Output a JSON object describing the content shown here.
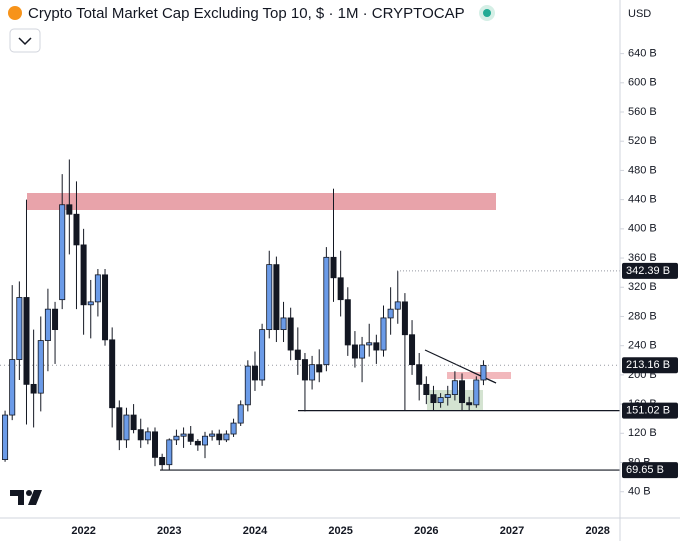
{
  "chart_data": {
    "type": "candlestick",
    "title": "Crypto Total Market Cap Excluding Top 10, $ · 1M · CRYPTOCAP",
    "currency": "USD",
    "categories": [
      null,
      null,
      null,
      null,
      null,
      null,
      null,
      null,
      null,
      null,
      null,
      "2022",
      null,
      null,
      null,
      null,
      null,
      null,
      null,
      null,
      null,
      null,
      null,
      "2023",
      null,
      null,
      null,
      null,
      null,
      null,
      null,
      null,
      null,
      null,
      null,
      "2024",
      null,
      null,
      null,
      null,
      null,
      null,
      null,
      null,
      null,
      null,
      null,
      "2025",
      null,
      null,
      null,
      null,
      null,
      null,
      null,
      null,
      null,
      null,
      null,
      "2026",
      null,
      null,
      null,
      null,
      null,
      null,
      null,
      null,
      null,
      null,
      null,
      "2027",
      null,
      null,
      null,
      null,
      null,
      null,
      null,
      null,
      null,
      null,
      null,
      "2028",
      null,
      null
    ],
    "open": [
      84,
      145,
      221,
      306,
      187,
      175,
      247,
      290,
      303,
      433,
      420,
      378,
      296,
      300,
      337,
      248,
      155,
      111,
      145,
      125,
      111,
      122,
      87,
      77,
      111,
      116,
      119,
      109,
      104,
      116,
      119,
      111,
      119,
      134,
      159,
      212,
      193,
      262,
      351,
      262,
      278,
      234,
      221,
      193,
      214,
      214,
      361,
      333,
      303,
      241,
      223,
      241,
      244,
      234,
      278,
      290,
      300,
      255,
      214,
      187,
      173,
      162,
      169,
      173,
      192,
      162,
      159,
      193,
      null,
      null,
      null,
      null,
      null,
      null,
      null,
      null,
      null,
      null,
      null,
      null,
      null,
      null,
      null,
      null,
      null,
      null
    ],
    "high": [
      151,
      323,
      328,
      440,
      262,
      280,
      318,
      300,
      475,
      495,
      465,
      400,
      330,
      345,
      345,
      265,
      165,
      155,
      160,
      140,
      128,
      128,
      92,
      113,
      125,
      128,
      130,
      112,
      122,
      124,
      125,
      124,
      140,
      165,
      220,
      232,
      270,
      370,
      362,
      300,
      292,
      265,
      230,
      226,
      235,
      375,
      455,
      370,
      320,
      260,
      252,
      270,
      255,
      295,
      320,
      342,
      312,
      275,
      230,
      198,
      185,
      175,
      185,
      205,
      202,
      170,
      198,
      220,
      null,
      null,
      null,
      null,
      null,
      null,
      null,
      null,
      null,
      null,
      null,
      null,
      null,
      null,
      null,
      null,
      null,
      null
    ],
    "low": [
      81,
      138,
      193,
      132,
      128,
      150,
      205,
      215,
      290,
      365,
      290,
      255,
      250,
      280,
      240,
      128,
      97,
      100,
      120,
      100,
      105,
      75,
      70,
      70,
      104,
      100,
      104,
      96,
      86,
      110,
      104,
      108,
      115,
      130,
      150,
      178,
      185,
      250,
      245,
      245,
      220,
      200,
      150,
      180,
      190,
      205,
      300,
      280,
      226,
      210,
      190,
      225,
      215,
      225,
      255,
      270,
      151,
      200,
      165,
      160,
      151,
      155,
      158,
      165,
      151,
      151,
      155,
      186,
      null,
      null,
      null,
      null,
      null,
      null,
      null,
      null,
      null,
      null,
      null,
      null,
      null,
      null,
      null,
      null,
      null,
      null
    ],
    "close": [
      145,
      221,
      306,
      187,
      175,
      247,
      290,
      262,
      433,
      420,
      378,
      296,
      300,
      337,
      248,
      155,
      111,
      145,
      125,
      111,
      122,
      87,
      77,
      111,
      116,
      119,
      109,
      104,
      116,
      119,
      111,
      119,
      134,
      159,
      212,
      193,
      262,
      351,
      262,
      278,
      234,
      221,
      193,
      214,
      204,
      361,
      333,
      303,
      241,
      223,
      241,
      244,
      234,
      278,
      290,
      300,
      255,
      214,
      187,
      173,
      162,
      169,
      173,
      192,
      162,
      159,
      193,
      213,
      null,
      null,
      null,
      null,
      null,
      null,
      null,
      null,
      null,
      null,
      null,
      null,
      null,
      null,
      null,
      null,
      null,
      null
    ],
    "up_color": "#6b9be8",
    "down_color": "#131722",
    "ylim": [
      4,
      713.4
    ],
    "yticks": [
      {
        "value": 40,
        "label": "40 B"
      },
      {
        "value": 80,
        "label": "80 B"
      },
      {
        "value": 120,
        "label": "120 B"
      },
      {
        "value": 160,
        "label": "160 B"
      },
      {
        "value": 200,
        "label": "200 B"
      },
      {
        "value": 240,
        "label": "240 B"
      },
      {
        "value": 280,
        "label": "280 B"
      },
      {
        "value": 320,
        "label": "320 B"
      },
      {
        "value": 360,
        "label": "360 B"
      },
      {
        "value": 400,
        "label": "400 B"
      },
      {
        "value": 440,
        "label": "440 B"
      },
      {
        "value": 480,
        "label": "480 B"
      },
      {
        "value": 520,
        "label": "520 B"
      },
      {
        "value": 560,
        "label": "560 B"
      },
      {
        "value": 600,
        "label": "600 B"
      },
      {
        "value": 640,
        "label": "640 B"
      }
    ],
    "price_labels": [
      {
        "value": 342.39,
        "label": "342.39 B"
      },
      {
        "value": 213.16,
        "label": "213.16 B"
      },
      {
        "value": 151.02,
        "label": "151.02 B"
      },
      {
        "value": 69.65,
        "label": "69.65 B"
      }
    ]
  }
}
